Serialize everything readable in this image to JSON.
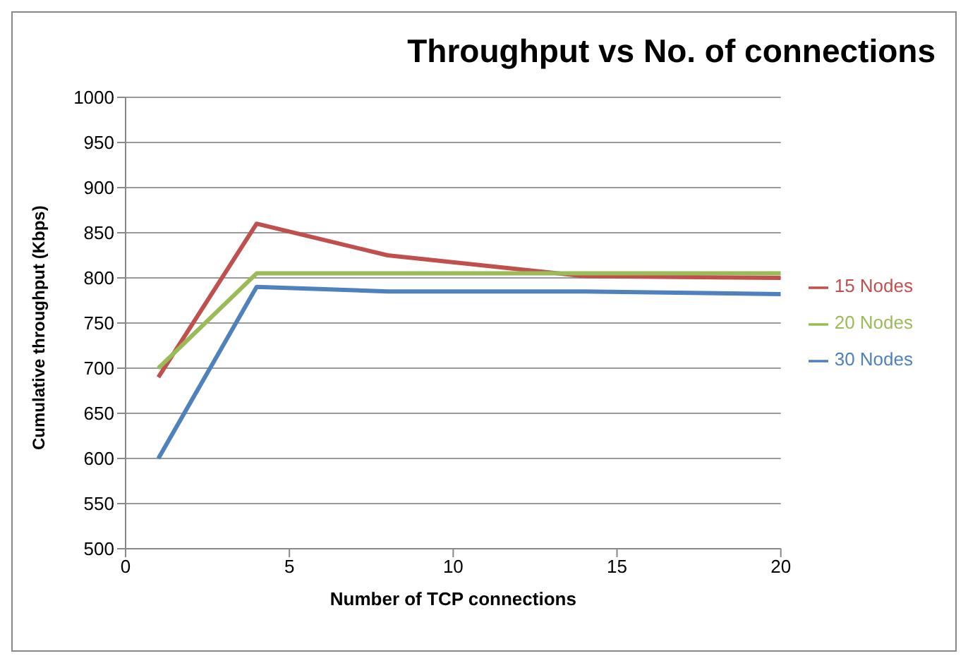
{
  "chart_data": {
    "type": "line",
    "title": "Throughput vs No. of connections",
    "xlabel": "Number of TCP connections",
    "ylabel": "Cumulative throughput (Kbps)",
    "x": [
      1,
      4,
      8,
      14,
      20
    ],
    "series": [
      {
        "name": "15 Nodes",
        "color": "#c0504d",
        "values": [
          690,
          860,
          825,
          802,
          800
        ]
      },
      {
        "name": "20 Nodes",
        "color": "#9bbb59",
        "values": [
          700,
          805,
          805,
          805,
          805
        ]
      },
      {
        "name": "30 Nodes",
        "color": "#4f81bd",
        "values": [
          600,
          790,
          785,
          785,
          782
        ]
      }
    ],
    "xlim": [
      0,
      20
    ],
    "xticks": [
      0,
      5,
      10,
      15,
      20
    ],
    "ylim": [
      500,
      1000
    ],
    "yticks": [
      500,
      550,
      600,
      650,
      700,
      750,
      800,
      850,
      900,
      950,
      1000
    ],
    "grid": "y",
    "legend": "right",
    "marker": "none",
    "line_style": "solid"
  }
}
